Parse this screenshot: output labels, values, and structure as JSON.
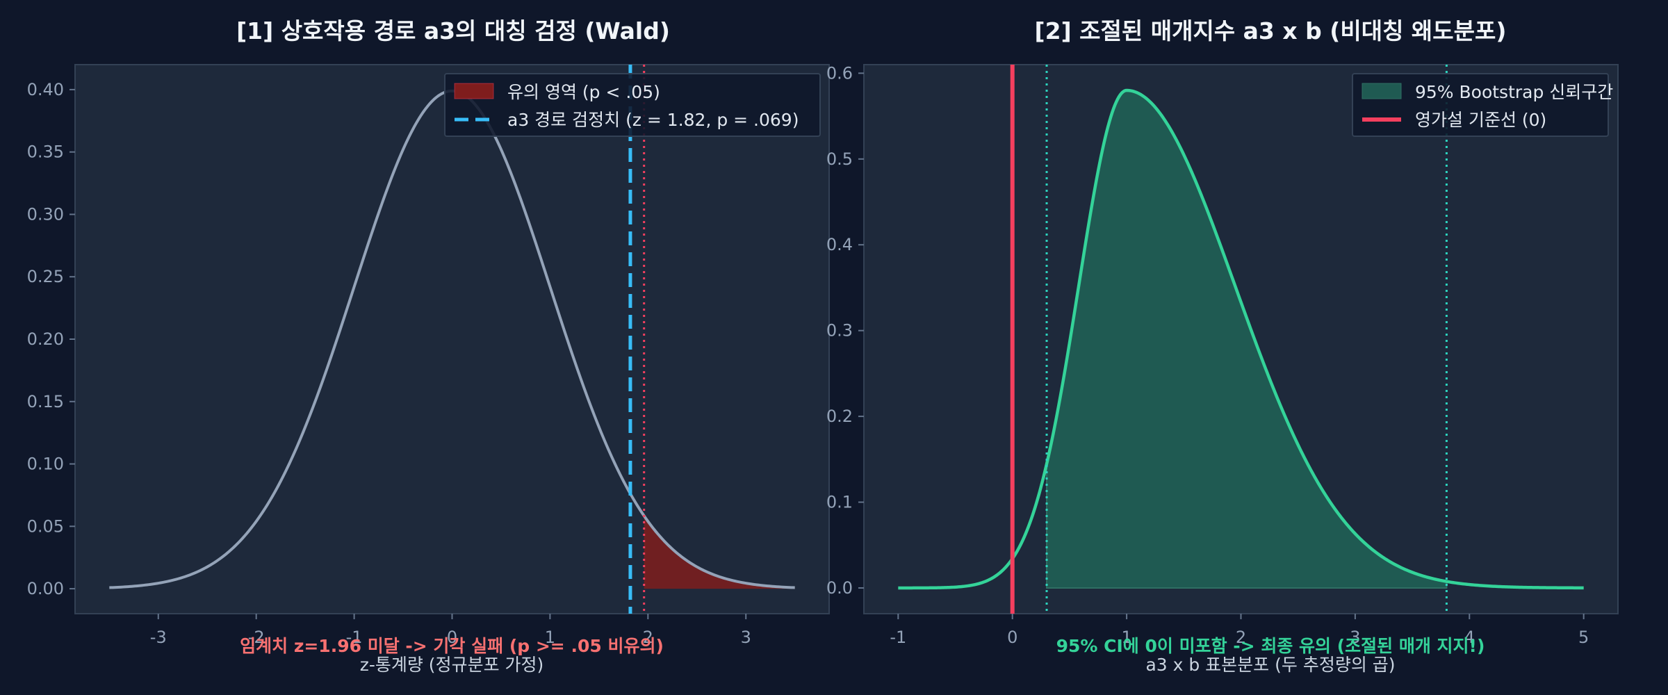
{
  "colors": {
    "background": "#0f172a",
    "panel": "#1e293b",
    "normal_curve": "#94a3b8",
    "significance_fill": "#7f1d1d",
    "critical_line": "#f43f5e",
    "statistic_line": "#38bdf8",
    "boot_curve": "#34d399",
    "boot_fill": "#1f5a52",
    "null_line": "#f43f5e",
    "ci_line": "#2dd4bf",
    "note_left": "#f87171",
    "note_right": "#34d399"
  },
  "chart_data": [
    {
      "type": "line",
      "title": "[1] 상호작용 경로 a3의 대칭 검정 (Wald)",
      "xlabel": "z-통계량 (정규분포 가정)",
      "ylabel": "",
      "xlim": [
        -3.85,
        3.85
      ],
      "ylim": [
        -0.02,
        0.42
      ],
      "x_ticks": [
        -3,
        -2,
        -1,
        0,
        1,
        2,
        3
      ],
      "x_tick_labels": [
        "-3",
        "-2",
        "-1",
        "0",
        "1",
        "2",
        "3"
      ],
      "y_ticks": [
        0.0,
        0.05,
        0.1,
        0.15,
        0.2,
        0.25,
        0.3,
        0.35,
        0.4
      ],
      "y_tick_labels": [
        "0.00",
        "0.05",
        "0.10",
        "0.15",
        "0.20",
        "0.25",
        "0.30",
        "0.35",
        "0.40"
      ],
      "curve": {
        "distribution": "standard normal",
        "x_range": [
          -3.5,
          3.5
        ]
      },
      "shaded_region": {
        "from": 1.96,
        "to": 3.5
      },
      "critical_line_x": 1.96,
      "statistic_line_x": 1.82,
      "legend": {
        "position": "top-right",
        "entries": [
          "유의 영역 (p < .05)",
          "a3 경로 검정치 (z = 1.82, p = .069)"
        ]
      },
      "annotation": "임계치 z=1.96 미달 -> 기각 실패 (p >= .05 비유의)",
      "grid": false
    },
    {
      "type": "line",
      "title": "[2] 조절된 매개지수 a3 x b (비대칭 왜도분포)",
      "xlabel": "a3 x b 표본분포 (두 추정량의 곱)",
      "ylabel": "",
      "xlim": [
        -1.3,
        5.3
      ],
      "ylim": [
        -0.03,
        0.61
      ],
      "x_ticks": [
        -1,
        0,
        1,
        2,
        3,
        4,
        5
      ],
      "x_tick_labels": [
        "-1",
        "0",
        "1",
        "2",
        "3",
        "4",
        "5"
      ],
      "y_ticks": [
        0.0,
        0.1,
        0.2,
        0.3,
        0.4,
        0.5,
        0.6
      ],
      "y_tick_labels": [
        "0.0",
        "0.1",
        "0.2",
        "0.3",
        "0.4",
        "0.5",
        "0.6"
      ],
      "curve": {
        "distribution": "right-skewed",
        "x_range": [
          -1,
          5
        ],
        "peak_x": 1.0,
        "peak_y": 0.58
      },
      "ci": [
        0.3,
        3.8
      ],
      "null_line_x": 0,
      "legend": {
        "position": "top-right",
        "entries": [
          "95% Bootstrap 신뢰구간",
          "영가설 기준선 (0)"
        ]
      },
      "annotation": "95% CI에 0이 미포함 -> 최종 유의 (조절된 매개 지지!)",
      "grid": false
    }
  ]
}
